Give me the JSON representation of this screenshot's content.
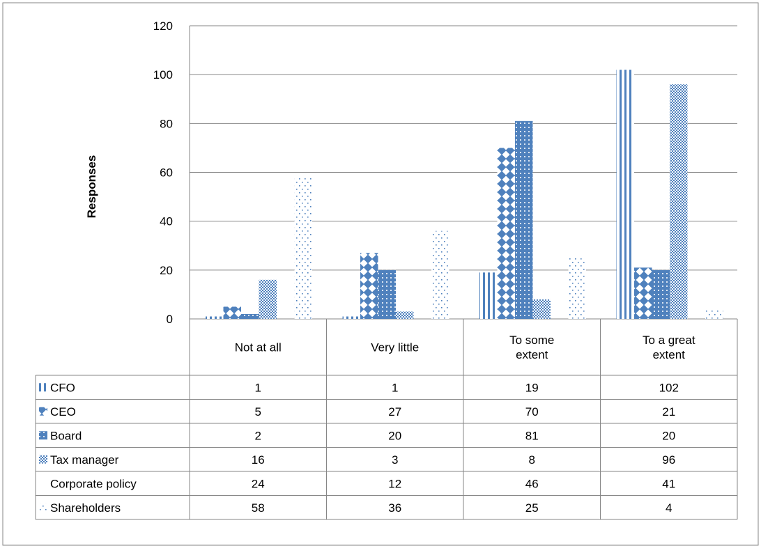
{
  "chart_data": {
    "type": "bar",
    "title": "",
    "xlabel": "",
    "ylabel": "Responses",
    "ylim": [
      0,
      120
    ],
    "yticks": [
      0,
      20,
      40,
      60,
      80,
      100,
      120
    ],
    "grid": true,
    "legend": "data-table-left",
    "categories": [
      "Not at all",
      "Very little",
      "To some extent",
      "To a great extent"
    ],
    "category_lines": [
      [
        "Not at all"
      ],
      [
        "Very little"
      ],
      [
        "To some",
        "extent"
      ],
      [
        "To a great",
        "extent"
      ]
    ],
    "series": [
      {
        "name": "CFO",
        "values": [
          1,
          1,
          19,
          102
        ],
        "pattern": "vertical-lines"
      },
      {
        "name": "CEO",
        "values": [
          5,
          27,
          70,
          21
        ],
        "pattern": "diamonds"
      },
      {
        "name": "Board",
        "values": [
          2,
          20,
          81,
          20
        ],
        "pattern": "dotted-grid"
      },
      {
        "name": "Tax manager",
        "values": [
          16,
          3,
          8,
          96
        ],
        "pattern": "checker-fine"
      },
      {
        "name": "Corporate policy",
        "values": [
          24,
          12,
          46,
          41
        ],
        "pattern": "solid"
      },
      {
        "name": "Shareholders",
        "values": [
          58,
          36,
          25,
          4
        ],
        "pattern": "sparse-dots"
      }
    ],
    "colors": {
      "bar": "#4f81bd",
      "grid": "#868686",
      "border": "#868686"
    }
  }
}
